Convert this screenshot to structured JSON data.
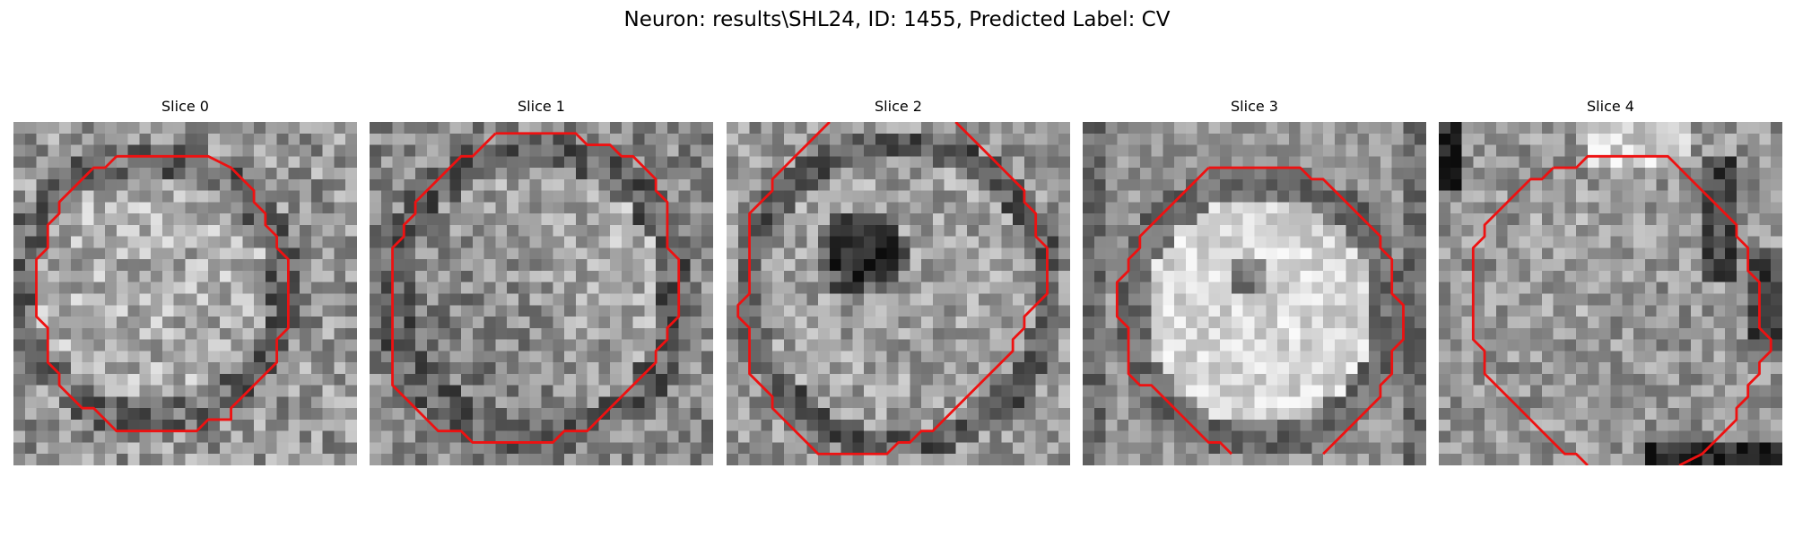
{
  "figure": {
    "title": "Neuron: results\\SHL24, ID: 1455, Predicted Label: CV"
  },
  "colors": {
    "contour": "#ee1111",
    "colormap": "grayscale"
  },
  "panels": [
    {
      "title": "Slice 0"
    },
    {
      "title": "Slice 1"
    },
    {
      "title": "Slice 2"
    },
    {
      "title": "Slice 3"
    },
    {
      "title": "Slice 4"
    }
  ]
}
